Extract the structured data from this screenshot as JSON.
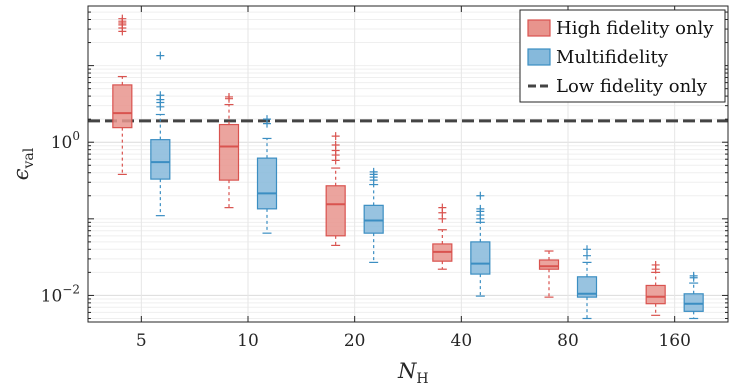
{
  "chart_data": {
    "type": "box",
    "xlabel": "N",
    "xlabel_sub": "H",
    "ylabel": "ϵ",
    "ylabel_sub": "val",
    "y_scale": "log",
    "ylim": [
      0.0045,
      60
    ],
    "y_ticks": [
      {
        "value": 1,
        "base": "10",
        "exp": "0"
      },
      {
        "value": 0.01,
        "base": "10",
        "exp": "−2"
      }
    ],
    "categories": [
      "5",
      "10",
      "20",
      "40",
      "80",
      "160"
    ],
    "grid": true,
    "legend_position": "top-right",
    "low_fidelity_reference": {
      "name": "Low fidelity only",
      "value": 1.9,
      "color": "#444444"
    },
    "series": [
      {
        "name": "High fidelity only",
        "color": "#d9534f",
        "fill": "#e8948d",
        "boxes": [
          {
            "whisker_low": 0.38,
            "q1": 1.55,
            "median": 2.4,
            "q3": 5.6,
            "whisker_high": 7.2,
            "outliers": [
              28,
              31,
              34,
              36,
              38,
              41
            ]
          },
          {
            "whisker_low": 0.14,
            "q1": 0.32,
            "median": 0.88,
            "q3": 1.7,
            "whisker_high": 3.1,
            "outliers": [
              3.7,
              3.9
            ]
          },
          {
            "whisker_low": 0.045,
            "q1": 0.06,
            "median": 0.155,
            "q3": 0.27,
            "whisker_high": 0.46,
            "outliers": [
              0.58,
              0.68,
              0.78,
              0.92,
              1.2
            ]
          },
          {
            "whisker_low": 0.022,
            "q1": 0.028,
            "median": 0.037,
            "q3": 0.047,
            "whisker_high": 0.072,
            "outliers": [
              0.1,
              0.12,
              0.14
            ]
          },
          {
            "whisker_low": 0.0095,
            "q1": 0.022,
            "median": 0.024,
            "q3": 0.029,
            "whisker_high": 0.038,
            "outliers": []
          },
          {
            "whisker_low": 0.0055,
            "q1": 0.0078,
            "median": 0.0096,
            "q3": 0.0135,
            "whisker_high": 0.02,
            "outliers": [
              0.022,
              0.025
            ]
          }
        ]
      },
      {
        "name": "Multifidelity",
        "color": "#3b8ec2",
        "fill": "#86b9db",
        "boxes": [
          {
            "whisker_low": 0.11,
            "q1": 0.33,
            "median": 0.55,
            "q3": 1.08,
            "whisker_high": 2.3,
            "outliers": [
              2.9,
              3.3,
              3.6,
              4.1,
              13.5
            ]
          },
          {
            "whisker_low": 0.065,
            "q1": 0.135,
            "median": 0.215,
            "q3": 0.62,
            "whisker_high": 1.12,
            "outliers": [
              1.75,
              2.0
            ]
          },
          {
            "whisker_low": 0.027,
            "q1": 0.065,
            "median": 0.095,
            "q3": 0.15,
            "whisker_high": 0.28,
            "outliers": [
              0.32,
              0.35,
              0.38,
              0.41
            ]
          },
          {
            "whisker_low": 0.0098,
            "q1": 0.019,
            "median": 0.026,
            "q3": 0.05,
            "whisker_high": 0.09,
            "outliers": [
              0.1,
              0.112,
              0.125,
              0.135,
              0.2
            ]
          },
          {
            "whisker_low": 0.005,
            "q1": 0.0095,
            "median": 0.0105,
            "q3": 0.0175,
            "whisker_high": 0.027,
            "outliers": [
              0.033,
              0.04
            ]
          },
          {
            "whisker_low": 0.005,
            "q1": 0.0062,
            "median": 0.0078,
            "q3": 0.0105,
            "whisker_high": 0.0145,
            "outliers": [
              0.017,
              0.018
            ]
          }
        ]
      }
    ]
  }
}
